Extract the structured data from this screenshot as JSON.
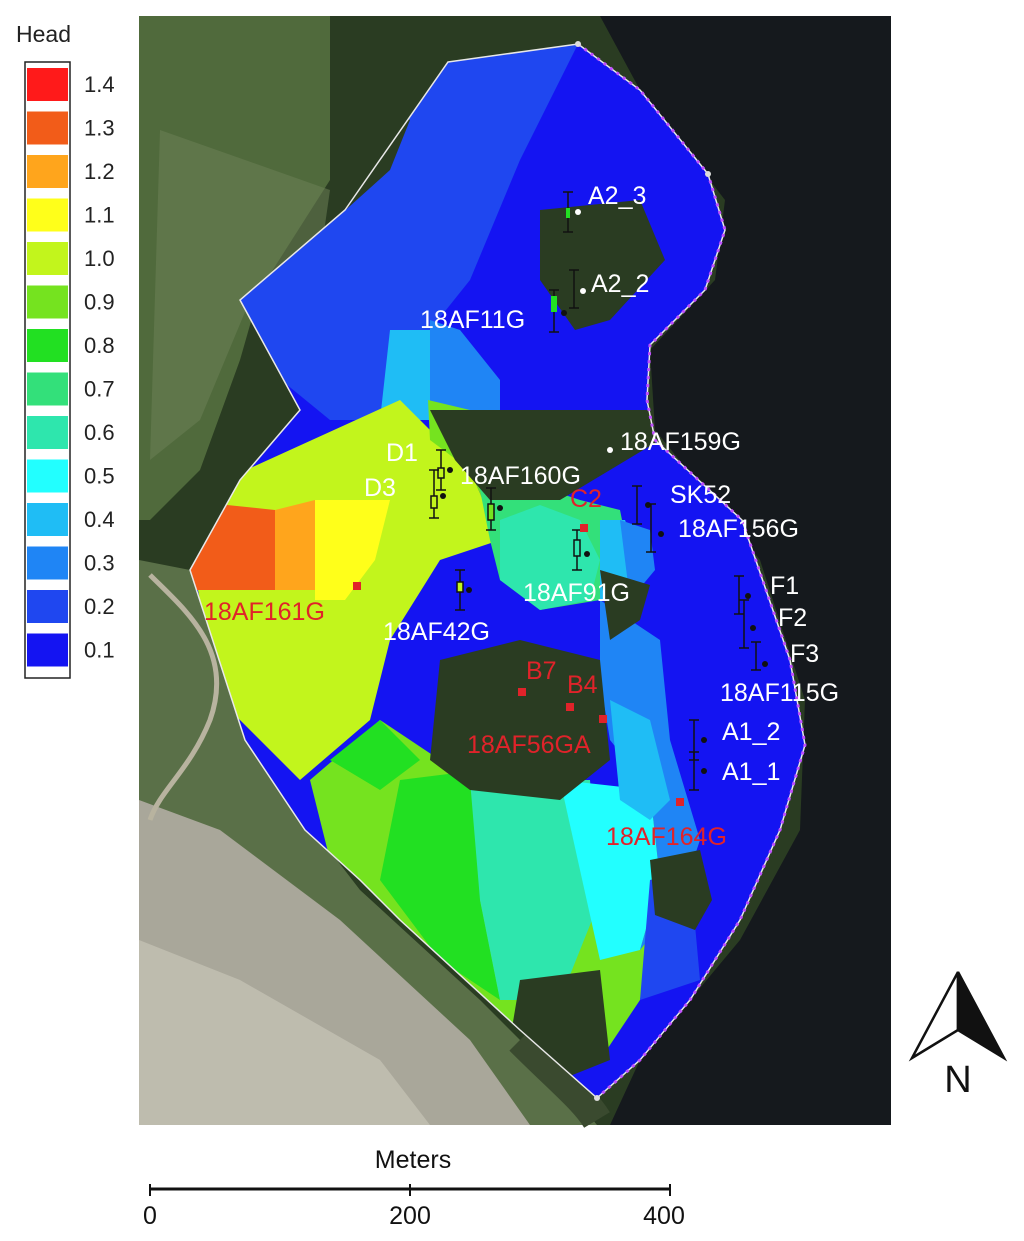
{
  "legend": {
    "title": "Head",
    "classes": [
      {
        "label": "1.4",
        "color": "#ff1a1a"
      },
      {
        "label": "1.3",
        "color": "#f25c19"
      },
      {
        "label": "1.2",
        "color": "#ffa51c"
      },
      {
        "label": "1.1",
        "color": "#ffff1a"
      },
      {
        "label": "1.0",
        "color": "#c2f51c"
      },
      {
        "label": "0.9",
        "color": "#75e31f"
      },
      {
        "label": "0.8",
        "color": "#22e022"
      },
      {
        "label": "0.7",
        "color": "#33e07a"
      },
      {
        "label": "0.6",
        "color": "#2ee6ad"
      },
      {
        "label": "0.5",
        "color": "#22ffff"
      },
      {
        "label": "0.4",
        "color": "#1fbdf5"
      },
      {
        "label": "0.3",
        "color": "#1f85f5"
      },
      {
        "label": "0.2",
        "color": "#1f47f0"
      },
      {
        "label": "0.1",
        "color": "#1414f2"
      }
    ]
  },
  "wells": {
    "white": [
      "A2_3",
      "A2_2",
      "18AF11G",
      "18AF159G",
      "D1",
      "D3",
      "18AF160G",
      "SK52",
      "18AF156G",
      "18AF91G",
      "18AF42G",
      "F1",
      "F2",
      "F3",
      "18AF115G",
      "A1_2",
      "A1_1"
    ],
    "red": [
      "C2",
      "18AF161G",
      "B7",
      "B4",
      "18AF56GA",
      "18AF164G"
    ]
  },
  "scale_bar": {
    "title": "Meters",
    "ticks": [
      "0",
      "200",
      "400"
    ]
  },
  "north_arrow": {
    "label": "N",
    "icon": "north-arrow-icon"
  },
  "colors": {
    "water": "#15191d",
    "forest": "#2a3c22",
    "field": "#5c7345",
    "bare_ground": "#a9a79a"
  }
}
